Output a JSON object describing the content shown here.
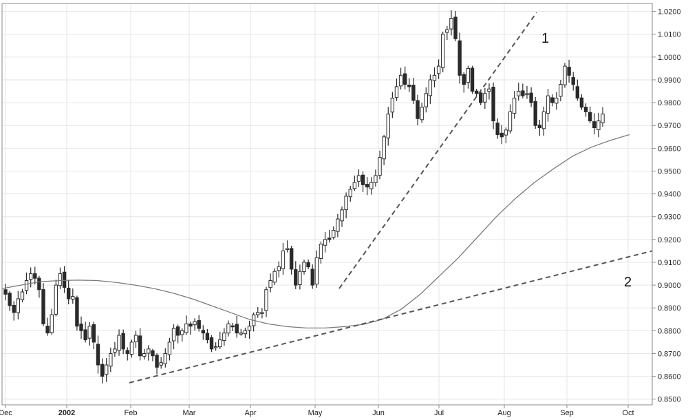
{
  "chart_data": {
    "type": "candlestick",
    "grid": true,
    "ylim": [
      0.8475,
      1.0235
    ],
    "y_ticks": [
      "1.0200",
      "1.0100",
      "1.0000",
      "0.9900",
      "0.9800",
      "0.9700",
      "0.9600",
      "0.9500",
      "0.9400",
      "0.9300",
      "0.9200",
      "0.9100",
      "0.9000",
      "0.8900",
      "0.8800",
      "0.8700",
      "0.8600",
      "0.8500"
    ],
    "x_ticks": [
      {
        "label": "Dec",
        "bold": false
      },
      {
        "label": "2002",
        "bold": true
      },
      {
        "label": "Feb",
        "bold": false
      },
      {
        "label": "Mar",
        "bold": false
      },
      {
        "label": "Apr",
        "bold": false
      },
      {
        "label": "May",
        "bold": false
      },
      {
        "label": "Jun",
        "bold": false
      },
      {
        "label": "Jul",
        "bold": false
      },
      {
        "label": "Aug",
        "bold": false
      },
      {
        "label": "Sep",
        "bold": false
      },
      {
        "label": "Oct",
        "bold": false
      }
    ],
    "candle_color": "#2a2a2a",
    "ma_color": "#7a7a7a",
    "trend_color": "#555555",
    "close_path": [
      0.896,
      0.891,
      0.888,
      0.894,
      0.897,
      0.902,
      0.905,
      0.903,
      0.898,
      0.883,
      0.879,
      0.887,
      0.9,
      0.905,
      0.899,
      0.894,
      0.895,
      0.882,
      0.88,
      0.876,
      0.882,
      0.875,
      0.865,
      0.86,
      0.865,
      0.87,
      0.872,
      0.878,
      0.872,
      0.87,
      0.875,
      0.878,
      0.869,
      0.87,
      0.872,
      0.869,
      0.864,
      0.866,
      0.87,
      0.875,
      0.881,
      0.878,
      0.88,
      0.883,
      0.882,
      0.884,
      0.881,
      0.879,
      0.876,
      0.872,
      0.873,
      0.876,
      0.879,
      0.883,
      0.882,
      0.879,
      0.879,
      0.88,
      0.882,
      0.887,
      0.888,
      0.888,
      0.898,
      0.902,
      0.906,
      0.908,
      0.915,
      0.916,
      0.907,
      0.9,
      0.906,
      0.91,
      0.908,
      0.9,
      0.912,
      0.918,
      0.92,
      0.92,
      0.924,
      0.929,
      0.933,
      0.939,
      0.942,
      0.945,
      0.948,
      0.944,
      0.943,
      0.945,
      0.948,
      0.956,
      0.965,
      0.975,
      0.982,
      0.987,
      0.992,
      0.988,
      0.987,
      0.981,
      0.973,
      0.978,
      0.984,
      0.99,
      0.992,
      0.996,
      1.01,
      1.012,
      1.017,
      1.008,
      0.992,
      0.988,
      0.995,
      0.985,
      0.984,
      0.98,
      0.984,
      0.986,
      0.972,
      0.966,
      0.965,
      0.968,
      0.976,
      0.982,
      0.985,
      0.983,
      0.984,
      0.98,
      0.97,
      0.969,
      0.976,
      0.983,
      0.98,
      0.982,
      0.988,
      0.996,
      0.992,
      0.988,
      0.982,
      0.978,
      0.976,
      0.972,
      0.969,
      0.972,
      0.975
    ],
    "moving_average": [
      0.8985,
      0.9,
      0.9015,
      0.902,
      0.9022,
      0.902,
      0.9012,
      0.9,
      0.8985,
      0.8965,
      0.894,
      0.891,
      0.888,
      0.885,
      0.883,
      0.8818,
      0.8812,
      0.8812,
      0.8818,
      0.8828,
      0.885,
      0.8895,
      0.896,
      0.904,
      0.912,
      0.921,
      0.93,
      0.938,
      0.945,
      0.951,
      0.9565,
      0.9605,
      0.9635,
      0.966
    ],
    "trendlines": [
      {
        "label": "1",
        "x_start": "May",
        "x_end": "Jul",
        "from": 0.8985,
        "to": 1.0195
      },
      {
        "label": "2",
        "x_start": "Feb",
        "x_end": "Oct",
        "from": 0.8572,
        "to": 0.915
      }
    ]
  }
}
